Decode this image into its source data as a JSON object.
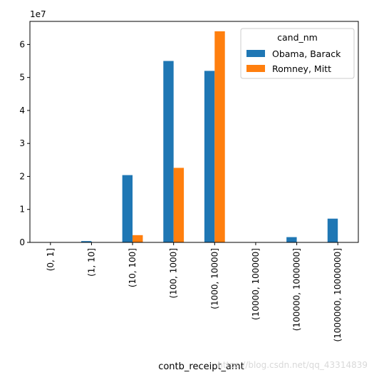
{
  "chart_data": {
    "type": "bar",
    "categories": [
      "(0, 1]",
      "(1, 10]",
      "(10, 100]",
      "(100, 1000]",
      "(1000, 10000]",
      "(10000, 100000]",
      "(100000, 1000000]",
      "(1000000, 10000000]"
    ],
    "series": [
      {
        "name": "Obama, Barack",
        "color": "#1f77b4",
        "values": [
          0.0,
          0.04,
          2.04,
          5.5,
          5.2,
          0.0,
          0.16,
          0.72
        ]
      },
      {
        "name": "Romney, Mitt",
        "color": "#ff7f0e",
        "values": [
          0.0,
          0.0,
          0.22,
          2.26,
          6.4,
          0.0,
          0.0,
          0.0
        ]
      }
    ],
    "xlabel": "contb_receipt_amt",
    "ylabel": "",
    "ylim": [
      0,
      6.7
    ],
    "yticks": [
      0,
      1,
      2,
      3,
      4,
      5,
      6
    ],
    "offset_text": "1e7",
    "legend": {
      "title": "cand_nm",
      "placement": "top-right"
    },
    "grid": false
  },
  "watermark": "https://blog.csdn.net/qq_43314839"
}
